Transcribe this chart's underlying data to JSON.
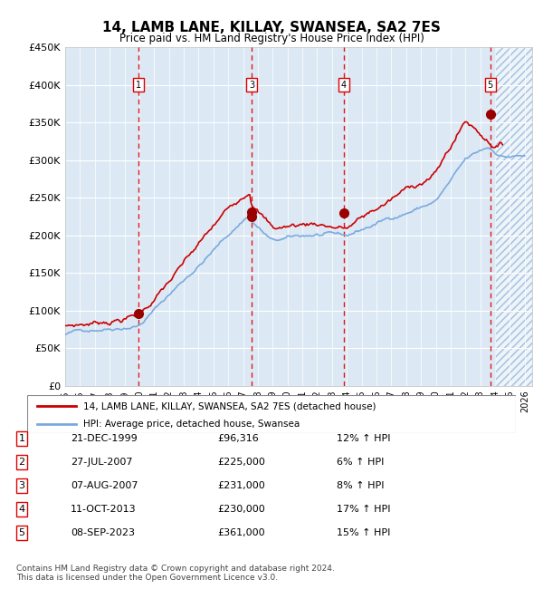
{
  "title": "14, LAMB LANE, KILLAY, SWANSEA, SA2 7ES",
  "subtitle": "Price paid vs. HM Land Registry's House Price Index (HPI)",
  "bg_color": "#dce9f5",
  "hatch_color": "#aac4e0",
  "grid_color": "#ffffff",
  "hpi_color": "#7aaadd",
  "price_color": "#cc0000",
  "marker_color": "#990000",
  "vline_color": "#dd0000",
  "sale_points": [
    {
      "label": "1",
      "date_num": 2000.0,
      "price": 96316,
      "x_year": 1999.97
    },
    {
      "label": "2",
      "date_num": 2007.57,
      "price": 225000,
      "x_year": 2007.57
    },
    {
      "label": "3",
      "date_num": 2007.6,
      "price": 231000,
      "x_year": 2007.6
    },
    {
      "label": "4",
      "date_num": 2013.78,
      "price": 230000,
      "x_year": 2013.78
    },
    {
      "label": "5",
      "date_num": 2023.68,
      "price": 361000,
      "x_year": 2023.68
    }
  ],
  "vline_labels": [
    "1",
    "3",
    "4",
    "5"
  ],
  "vline_x": [
    1999.97,
    2007.6,
    2013.78,
    2023.68
  ],
  "table_rows": [
    {
      "num": "1",
      "date": "21-DEC-1999",
      "price": "£96,316",
      "hpi": "12% ↑ HPI"
    },
    {
      "num": "2",
      "date": "27-JUL-2007",
      "price": "£225,000",
      "hpi": "6% ↑ HPI"
    },
    {
      "num": "3",
      "date": "07-AUG-2007",
      "price": "£231,000",
      "hpi": "8% ↑ HPI"
    },
    {
      "num": "4",
      "date": "11-OCT-2013",
      "price": "£230,000",
      "hpi": "17% ↑ HPI"
    },
    {
      "num": "5",
      "date": "08-SEP-2023",
      "price": "£361,000",
      "hpi": "15% ↑ HPI"
    }
  ],
  "footer": "Contains HM Land Registry data © Crown copyright and database right 2024.\nThis data is licensed under the Open Government Licence v3.0.",
  "ylim": [
    0,
    450000
  ],
  "xlim_start": 1995.0,
  "xlim_end": 2026.5,
  "yticks": [
    0,
    50000,
    100000,
    150000,
    200000,
    250000,
    300000,
    350000,
    400000,
    450000
  ],
  "ytick_labels": [
    "£0",
    "£50K",
    "£100K",
    "£150K",
    "£200K",
    "£250K",
    "£300K",
    "£350K",
    "£400K",
    "£450K"
  ],
  "xtick_years": [
    1995,
    1996,
    1997,
    1998,
    1999,
    2000,
    2001,
    2002,
    2003,
    2004,
    2005,
    2006,
    2007,
    2008,
    2009,
    2010,
    2011,
    2012,
    2013,
    2014,
    2015,
    2016,
    2017,
    2018,
    2019,
    2020,
    2021,
    2022,
    2023,
    2024,
    2025,
    2026
  ]
}
